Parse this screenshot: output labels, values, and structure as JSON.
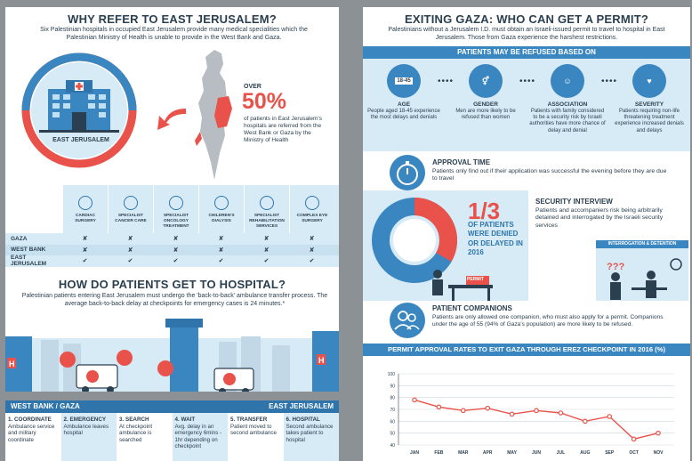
{
  "left": {
    "title": "WHY REFER TO EAST JERUSALEM?",
    "intro": "Six Palestinian hospitals in occupied East Jerusalem provide many medical specialities which the Palestinian Ministry of Health is unable to provide in the West Bank and Gaza.",
    "hospital_label": "EAST JERUSALEM",
    "over_text": "OVER",
    "percent": "50%",
    "percent_desc": "of patients in East Jerusalem's hospitals are referred from the West Bank or Gaza by the Ministry of Health",
    "specialties": [
      "CARDIAC SURGERY",
      "SPECIALIST CANCER CARE",
      "SPECIALIST ONCOLOGY TREATMENT",
      "CHILDREN'S DIALYSIS",
      "SPECIALIST REHABILITATION SERVICES",
      "COMPLEX EYE SURGERY"
    ],
    "regions": [
      {
        "name": "GAZA",
        "marks": [
          "✘",
          "✘",
          "✘",
          "✘",
          "✘",
          "✘"
        ]
      },
      {
        "name": "WEST BANK",
        "marks": [
          "✘",
          "✘",
          "✘",
          "✘",
          "✘",
          "✘"
        ]
      },
      {
        "name": "EAST JERUSALEM",
        "marks": [
          "✔",
          "✔",
          "✔",
          "✔",
          "✔",
          "✔"
        ]
      }
    ],
    "section2_title": "HOW DO PATIENTS GET TO HOSPITAL?",
    "section2_text": "Palestinian patients entering East Jerusalem must undergo the 'back-to-back' ambulance transfer process. The average back-to-back delay at checkpoints for emergency cases is 24 minutes.*",
    "from_label": "WEST BANK / GAZA",
    "to_label": "EAST JERUSALEM",
    "steps": [
      {
        "title": "1. COORDINATE",
        "text": "Ambulance service and military coordinate"
      },
      {
        "title": "2. EMERGENCY",
        "text": "Ambulance leaves hospital"
      },
      {
        "title": "3. SEARCH",
        "text": "At checkpoint ambulance is searched"
      },
      {
        "title": "4. WAIT",
        "text": "Avg. delay in an emergency 6mins - 1hr depending on checkpoint"
      },
      {
        "title": "5. TRANSFER",
        "text": "Patient moved to second ambulance"
      },
      {
        "title": "6. HOSPITAL",
        "text": "Second ambulance takes patient to hospital"
      }
    ]
  },
  "right": {
    "title": "EXITING GAZA: WHO CAN GET A PERMIT?",
    "intro": "Palestinians without a Jerusalem I.D. must obtain an Israeli-issued permit to travel to hospital in East Jerusalem. Those from Gaza experience the harshest restrictions.",
    "refused_bar": "PATIENTS MAY BE REFUSED BASED ON",
    "age_badge": "18-45",
    "reasons": [
      {
        "title": "AGE",
        "text": "People aged 18-45 experience the most delays and denials",
        "icon": "id-card-icon"
      },
      {
        "title": "GENDER",
        "text": "Men are more likely to be refused than women",
        "icon": "gender-icon"
      },
      {
        "title": "ASSOCIATION",
        "text": "Patients with family considered to be a security risk by Israeli authorities have more chance of delay and denial",
        "icon": "person-icon"
      },
      {
        "title": "SEVERITY",
        "text": "Patients requiring non-life threatening treatment experience increased denials and delays",
        "icon": "heartbeat-icon"
      }
    ],
    "approval_title": "APPROVAL TIME",
    "approval_text": "Patients only find out if their application was successful the evening before they are due to travel",
    "fraction": "1/3",
    "fraction_text": "OF PATIENTS WERE DENIED OR DELAYED IN 2016",
    "permit_label": "PERMIT",
    "security_title": "SECURITY INTERVIEW",
    "security_text": "Patients and accompaniers risk being arbitrarily detained and interrogated by the Israeli security services",
    "interrogation_label": "INTERROGATION & DETENTION",
    "companions_title": "PATIENT COMPANIONS",
    "companions_text": "Patients are only allowed one companion, who must also apply for a permit. Companions under the age of 55 (94% of Gaza's population) are more likely to be refused.",
    "chart_bar": "PERMIT APPROVAL RATES TO EXIT GAZA THROUGH EREZ CHECKPOINT IN 2016 (%)"
  },
  "chart_data": {
    "type": "line",
    "title": "PERMIT APPROVAL RATES TO EXIT GAZA THROUGH EREZ CHECKPOINT IN 2016 (%)",
    "categories": [
      "JAN",
      "FEB",
      "MAR",
      "APR",
      "MAY",
      "JUN",
      "JUL",
      "AUG",
      "SEP",
      "OCT",
      "NOV"
    ],
    "values": [
      78,
      72,
      69,
      71,
      66,
      69,
      67,
      60,
      64,
      45,
      50
    ],
    "yticks": [
      100,
      90,
      80,
      70,
      60,
      50,
      40
    ],
    "ylim": [
      40,
      100
    ],
    "grid": true,
    "color": "#e8524a"
  },
  "colors": {
    "blue": "#3a86c0",
    "red": "#e8524a",
    "navy": "#2a3f4f",
    "light": "#d6ebf6"
  }
}
